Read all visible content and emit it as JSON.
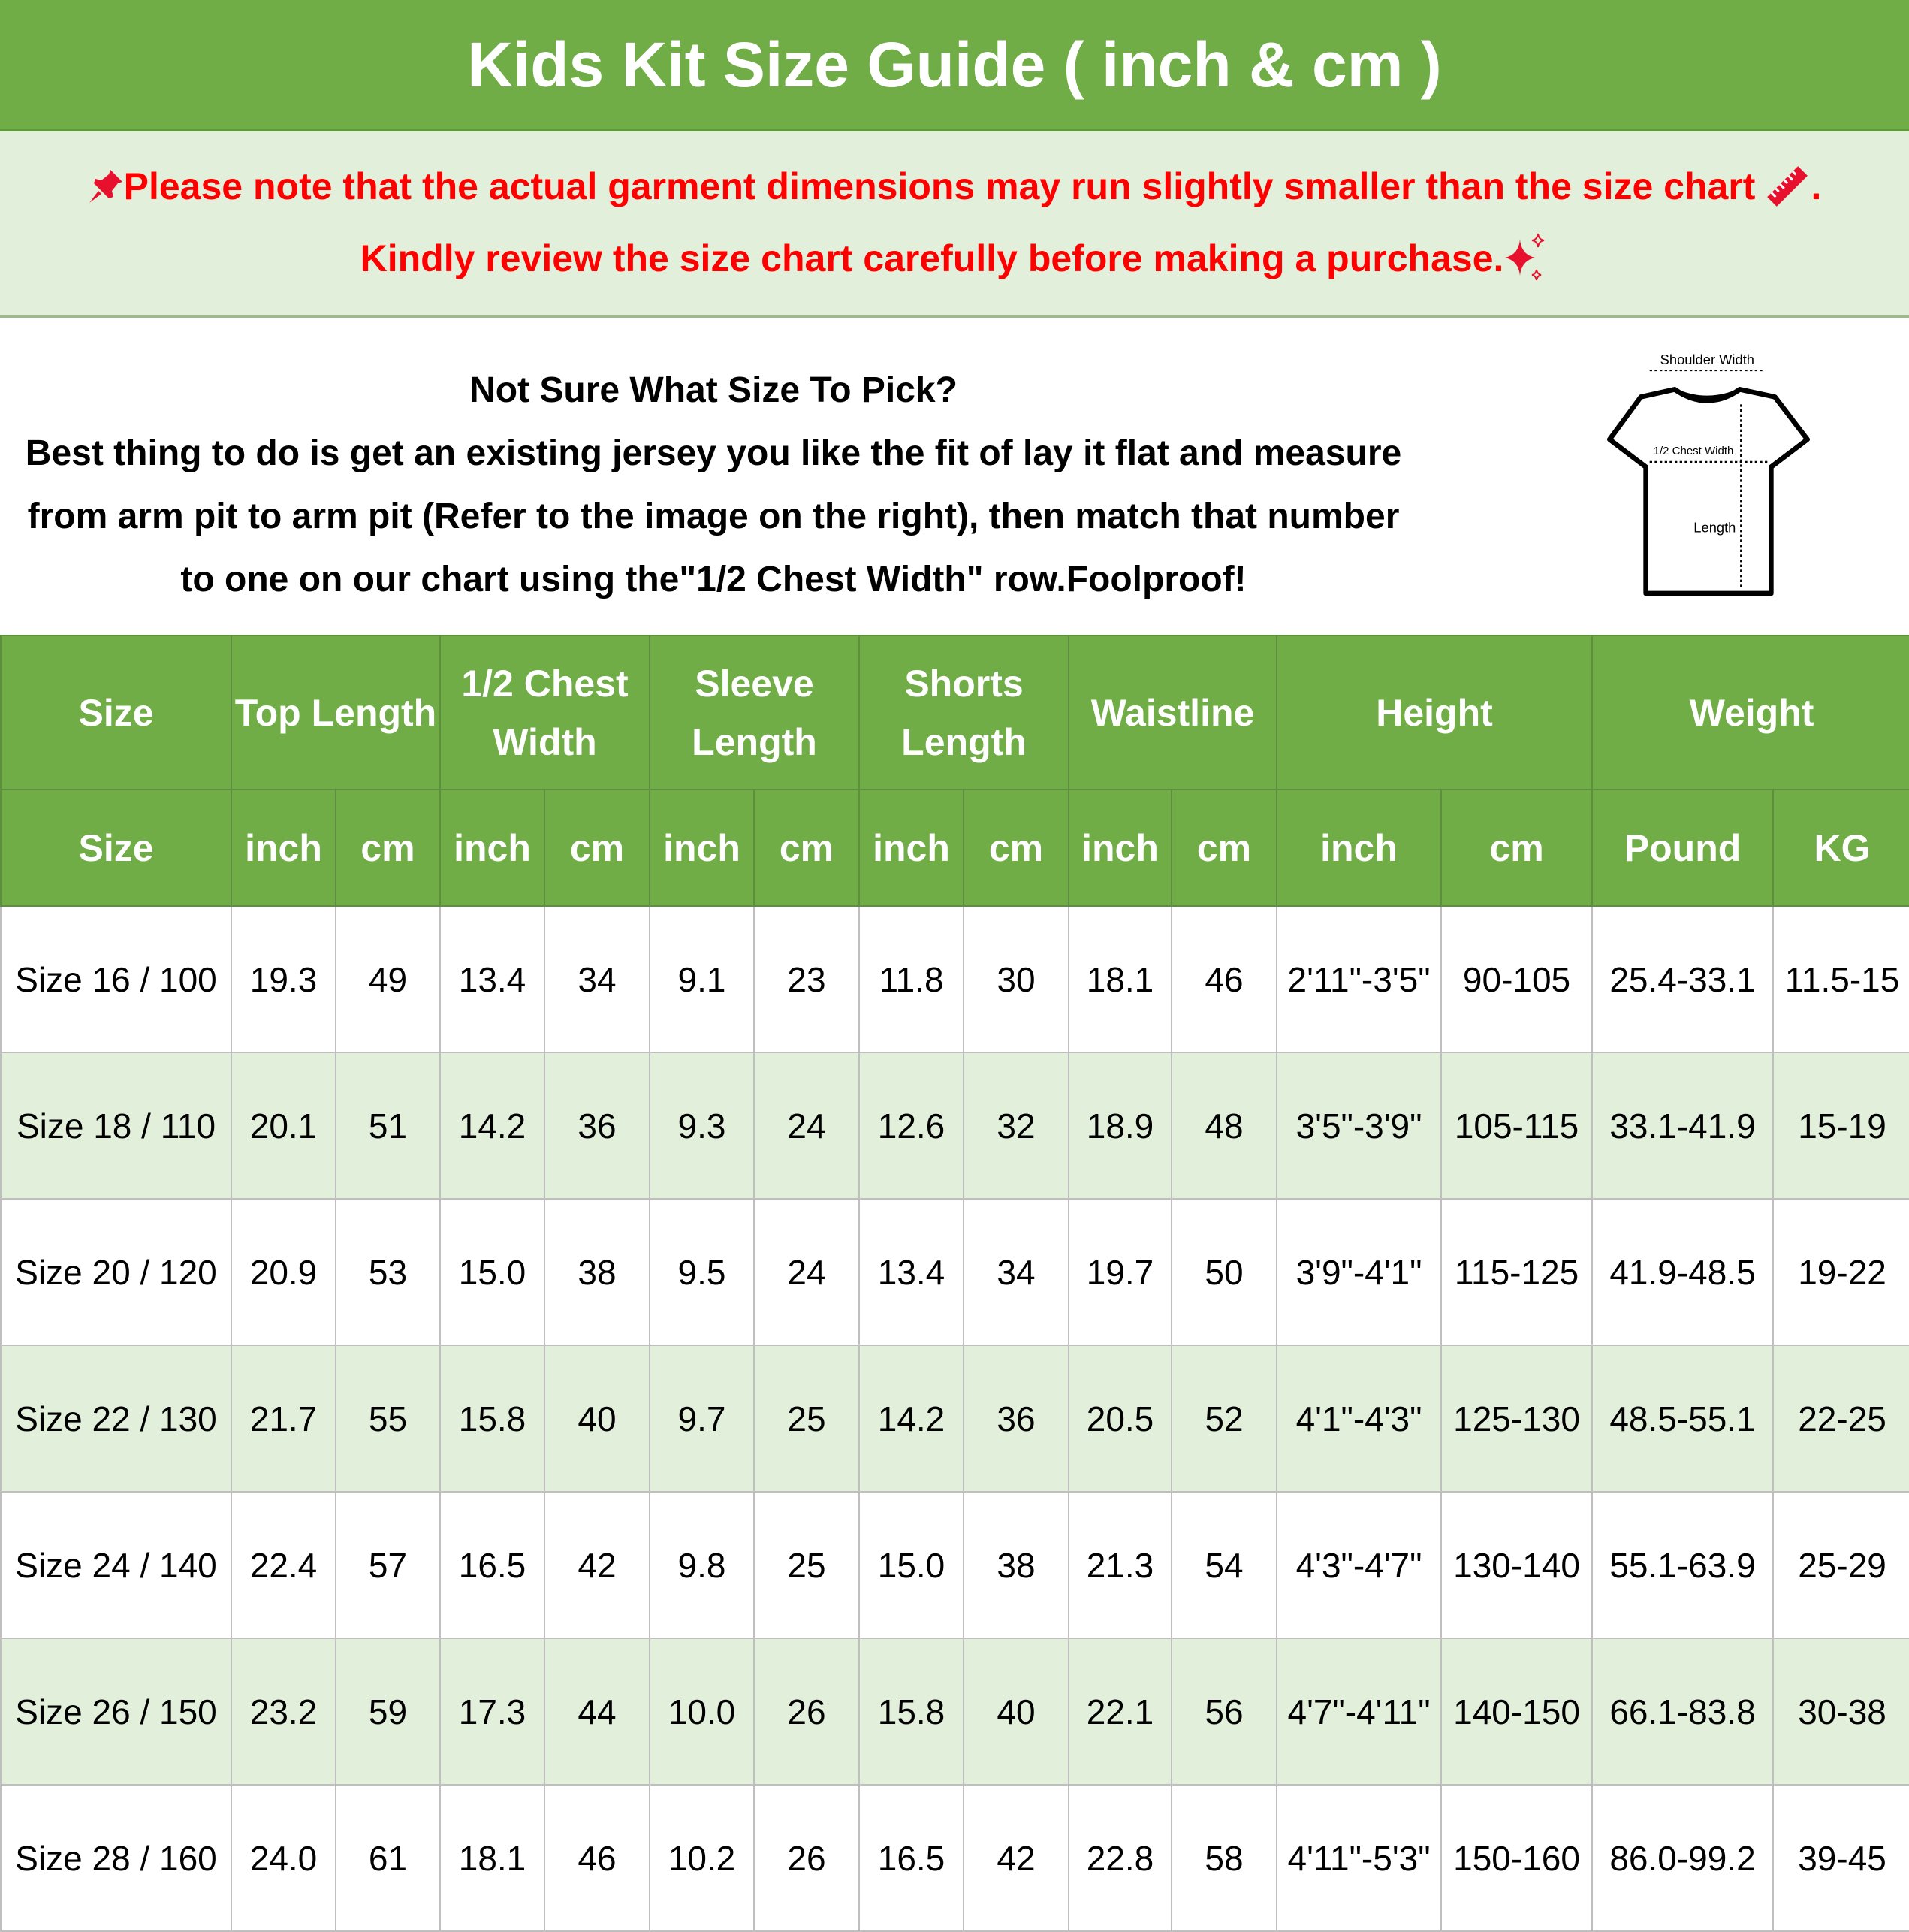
{
  "title": "Kids Kit Size Guide ( inch & cm )",
  "notice": {
    "line1": "Please note that the actual garment dimensions may run slightly smaller than the size chart",
    "line1_end": ".",
    "line2": "Kindly review the size chart carefully before making a purchase."
  },
  "info": {
    "heading": "Not Sure What Size To Pick?",
    "lines": [
      "Best thing to do is get an existing jersey you like the fit of lay it flat and measure",
      "from arm pit to arm pit (Refer to the image on the right), then match that number",
      "to one on our chart using the\"1/2 Chest Width\" row.Foolproof!"
    ]
  },
  "diagram": {
    "shoulder": "Shoulder Width",
    "chest": "1/2 Chest Width",
    "length": "Length"
  },
  "table": {
    "header_groups": [
      "Size",
      "Top Length",
      "1/2 Chest Width",
      "Sleeve Length",
      "Shorts Length",
      "Waistline",
      "Height",
      "Weight"
    ],
    "units": [
      "Size",
      "inch",
      "cm",
      "inch",
      "cm",
      "inch",
      "cm",
      "inch",
      "cm",
      "inch",
      "cm",
      "inch",
      "cm",
      "Pound",
      "KG"
    ],
    "rows": [
      [
        "Size 16 / 100",
        "19.3",
        "49",
        "13.4",
        "34",
        "9.1",
        "23",
        "11.8",
        "30",
        "18.1",
        "46",
        "2'11\"-3'5\"",
        "90-105",
        "25.4-33.1",
        "11.5-15"
      ],
      [
        "Size 18 / 110",
        "20.1",
        "51",
        "14.2",
        "36",
        "9.3",
        "24",
        "12.6",
        "32",
        "18.9",
        "48",
        "3'5\"-3'9\"",
        "105-115",
        "33.1-41.9",
        "15-19"
      ],
      [
        "Size 20 / 120",
        "20.9",
        "53",
        "15.0",
        "38",
        "9.5",
        "24",
        "13.4",
        "34",
        "19.7",
        "50",
        "3'9\"-4'1\"",
        "115-125",
        "41.9-48.5",
        "19-22"
      ],
      [
        "Size 22 / 130",
        "21.7",
        "55",
        "15.8",
        "40",
        "9.7",
        "25",
        "14.2",
        "36",
        "20.5",
        "52",
        "4'1\"-4'3\"",
        "125-130",
        "48.5-55.1",
        "22-25"
      ],
      [
        "Size 24 / 140",
        "22.4",
        "57",
        "16.5",
        "42",
        "9.8",
        "25",
        "15.0",
        "38",
        "21.3",
        "54",
        "4'3\"-4'7\"",
        "130-140",
        "55.1-63.9",
        "25-29"
      ],
      [
        "Size 26 / 150",
        "23.2",
        "59",
        "17.3",
        "44",
        "10.0",
        "26",
        "15.8",
        "40",
        "22.1",
        "56",
        "4'7\"-4'11\"",
        "140-150",
        "66.1-83.8",
        "30-38"
      ],
      [
        "Size 28 / 160",
        "24.0",
        "61",
        "18.1",
        "46",
        "10.2",
        "26",
        "16.5",
        "42",
        "22.8",
        "58",
        "4'11\"-5'3\"",
        "150-160",
        "86.0-99.2",
        "39-45"
      ]
    ]
  }
}
